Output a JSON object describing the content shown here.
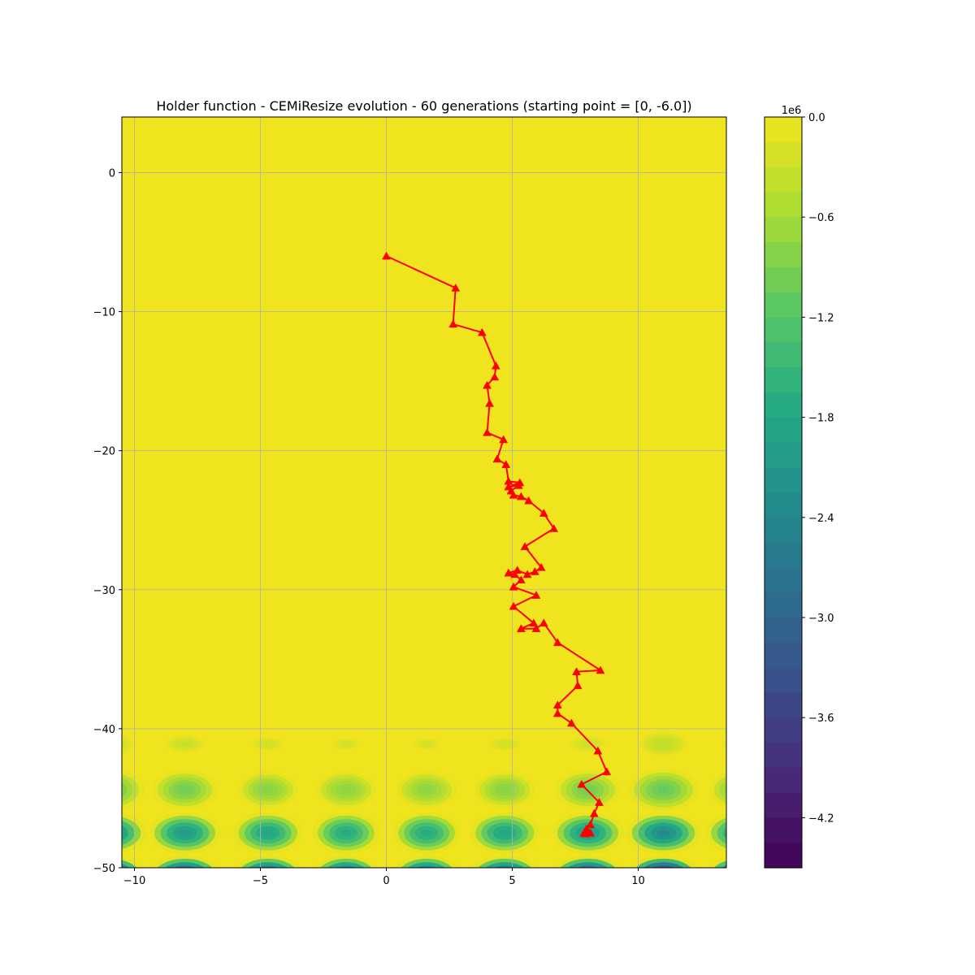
{
  "chart_data": {
    "type": "contour",
    "title": "Holder function - CEMiResize evolution - 60 generations (starting point = [0, -6.0])",
    "xlabel": "",
    "ylabel": "",
    "xlim": [
      -10.5,
      13.5
    ],
    "ylim": [
      -50,
      4
    ],
    "x_ticks": [
      -10,
      -5,
      0,
      5,
      10
    ],
    "y_ticks": [
      0,
      -10,
      -20,
      -30,
      -40,
      -50
    ],
    "grid": true,
    "background_color": "#f0e41e",
    "colorbar": {
      "exponent_label": "1e6",
      "ticks": [
        0.0,
        -0.6,
        -1.2,
        -1.8,
        -2.4,
        -3.0,
        -3.6,
        -4.2
      ],
      "tick_labels": [
        "0.0",
        "−0.6",
        "−1.2",
        "−1.8",
        "−2.4",
        "−3.0",
        "−3.6",
        "−4.2"
      ],
      "range": [
        -4.5,
        0
      ],
      "colormap": "viridis"
    },
    "path_series": {
      "color": "#ff0000",
      "marker": "triangle",
      "points": [
        [
          0,
          -6.0
        ],
        [
          2.75,
          -8.3
        ],
        [
          2.65,
          -10.9
        ],
        [
          3.8,
          -11.5
        ],
        [
          4.35,
          -13.9
        ],
        [
          4.3,
          -14.7
        ],
        [
          4.0,
          -15.3
        ],
        [
          4.1,
          -16.6
        ],
        [
          4.0,
          -18.7
        ],
        [
          4.65,
          -19.2
        ],
        [
          4.4,
          -20.6
        ],
        [
          4.75,
          -21.0
        ],
        [
          4.85,
          -22.2
        ],
        [
          5.3,
          -22.3
        ],
        [
          4.85,
          -22.6
        ],
        [
          5.25,
          -22.5
        ],
        [
          4.95,
          -22.9
        ],
        [
          5.05,
          -23.2
        ],
        [
          5.35,
          -23.3
        ],
        [
          5.65,
          -23.6
        ],
        [
          6.25,
          -24.5
        ],
        [
          6.65,
          -25.6
        ],
        [
          5.5,
          -26.9
        ],
        [
          6.15,
          -28.4
        ],
        [
          5.9,
          -28.7
        ],
        [
          5.6,
          -28.9
        ],
        [
          5.2,
          -28.6
        ],
        [
          4.85,
          -28.8
        ],
        [
          5.1,
          -28.9
        ],
        [
          5.35,
          -29.3
        ],
        [
          5.05,
          -29.8
        ],
        [
          5.95,
          -30.4
        ],
        [
          5.05,
          -31.2
        ],
        [
          5.85,
          -32.4
        ],
        [
          5.35,
          -32.8
        ],
        [
          5.95,
          -32.8
        ],
        [
          6.25,
          -32.4
        ],
        [
          6.8,
          -33.8
        ],
        [
          8.5,
          -35.8
        ],
        [
          7.55,
          -35.9
        ],
        [
          7.6,
          -36.9
        ],
        [
          6.8,
          -38.3
        ],
        [
          6.8,
          -38.9
        ],
        [
          7.35,
          -39.6
        ],
        [
          8.4,
          -41.6
        ],
        [
          8.75,
          -43.1
        ],
        [
          7.75,
          -44.0
        ],
        [
          8.45,
          -45.3
        ],
        [
          8.25,
          -46.1
        ],
        [
          8.1,
          -46.9
        ],
        [
          7.95,
          -47.2
        ],
        [
          7.9,
          -47.4
        ],
        [
          8.05,
          -47.5
        ],
        [
          7.95,
          -47.45
        ],
        [
          7.85,
          -47.5
        ],
        [
          8.0,
          -47.45
        ],
        [
          7.9,
          -47.55
        ],
        [
          8.1,
          -47.5
        ],
        [
          7.95,
          -47.5
        ],
        [
          7.9,
          -47.5
        ]
      ]
    },
    "field_features": [
      {
        "x": -8.0,
        "y": -41.1,
        "rx": 0.75,
        "ry": 0.6,
        "depth": 0.25
      },
      {
        "x": -4.7,
        "y": -41.1,
        "rx": 0.6,
        "ry": 0.45,
        "depth": 0.18
      },
      {
        "x": -1.6,
        "y": -41.1,
        "rx": 0.5,
        "ry": 0.4,
        "depth": 0.15
      },
      {
        "x": 1.6,
        "y": -41.1,
        "rx": 0.5,
        "ry": 0.4,
        "depth": 0.15
      },
      {
        "x": 4.7,
        "y": -41.1,
        "rx": 0.6,
        "ry": 0.45,
        "depth": 0.18
      },
      {
        "x": 8.0,
        "y": -41.1,
        "rx": 0.7,
        "ry": 0.55,
        "depth": 0.22
      },
      {
        "x": 11.0,
        "y": -41.1,
        "rx": 0.95,
        "ry": 0.85,
        "depth": 0.32
      },
      {
        "x": -11.0,
        "y": -41.1,
        "rx": 0.95,
        "ry": 0.85,
        "depth": 0.32
      },
      {
        "x": 14.1,
        "y": -41.1,
        "rx": 0.7,
        "ry": 0.7,
        "depth": 0.25
      },
      {
        "x": -8.0,
        "y": -44.4,
        "rx": 1.3,
        "ry": 1.4,
        "depth": 0.9
      },
      {
        "x": -4.7,
        "y": -44.4,
        "rx": 1.2,
        "ry": 1.3,
        "depth": 0.75
      },
      {
        "x": -1.6,
        "y": -44.4,
        "rx": 1.2,
        "ry": 1.3,
        "depth": 0.7
      },
      {
        "x": 1.6,
        "y": -44.4,
        "rx": 1.2,
        "ry": 1.3,
        "depth": 0.7
      },
      {
        "x": 4.7,
        "y": -44.4,
        "rx": 1.2,
        "ry": 1.3,
        "depth": 0.75
      },
      {
        "x": 8.0,
        "y": -44.4,
        "rx": 1.3,
        "ry": 1.4,
        "depth": 0.9
      },
      {
        "x": 11.0,
        "y": -44.4,
        "rx": 1.4,
        "ry": 1.5,
        "depth": 1.0
      },
      {
        "x": -11.0,
        "y": -44.4,
        "rx": 1.4,
        "ry": 1.5,
        "depth": 1.0
      },
      {
        "x": 14.1,
        "y": -44.4,
        "rx": 1.3,
        "ry": 1.4,
        "depth": 0.9
      },
      {
        "x": -8.0,
        "y": -47.5,
        "rx": 1.45,
        "ry": 1.5,
        "depth": 2.0
      },
      {
        "x": -4.7,
        "y": -47.5,
        "rx": 1.4,
        "ry": 1.5,
        "depth": 1.8
      },
      {
        "x": -1.6,
        "y": -47.5,
        "rx": 1.35,
        "ry": 1.5,
        "depth": 1.7
      },
      {
        "x": 1.6,
        "y": -47.5,
        "rx": 1.35,
        "ry": 1.5,
        "depth": 1.7
      },
      {
        "x": 4.7,
        "y": -47.5,
        "rx": 1.4,
        "ry": 1.5,
        "depth": 1.8
      },
      {
        "x": 8.0,
        "y": -47.5,
        "rx": 1.45,
        "ry": 1.5,
        "depth": 2.0
      },
      {
        "x": 11.0,
        "y": -47.5,
        "rx": 1.5,
        "ry": 1.5,
        "depth": 2.3
      },
      {
        "x": -11.0,
        "y": -47.5,
        "rx": 1.5,
        "ry": 1.5,
        "depth": 2.3
      },
      {
        "x": 14.1,
        "y": -47.5,
        "rx": 1.45,
        "ry": 1.5,
        "depth": 2.0
      },
      {
        "x": -8.0,
        "y": -50.6,
        "rx": 1.5,
        "ry": 1.5,
        "depth": 3.5
      },
      {
        "x": -4.7,
        "y": -50.6,
        "rx": 1.45,
        "ry": 1.5,
        "depth": 3.2
      },
      {
        "x": -1.6,
        "y": -50.6,
        "rx": 1.4,
        "ry": 1.5,
        "depth": 3.0
      },
      {
        "x": 1.6,
        "y": -50.6,
        "rx": 1.4,
        "ry": 1.5,
        "depth": 3.0
      },
      {
        "x": 4.7,
        "y": -50.6,
        "rx": 1.45,
        "ry": 1.5,
        "depth": 3.2
      },
      {
        "x": 8.0,
        "y": -50.6,
        "rx": 1.5,
        "ry": 1.5,
        "depth": 3.6
      },
      {
        "x": 11.0,
        "y": -50.6,
        "rx": 1.5,
        "ry": 1.5,
        "depth": 4.4
      },
      {
        "x": -11.0,
        "y": -50.6,
        "rx": 1.5,
        "ry": 1.5,
        "depth": 4.2
      },
      {
        "x": 14.1,
        "y": -50.6,
        "rx": 1.5,
        "ry": 1.5,
        "depth": 3.8
      }
    ]
  }
}
